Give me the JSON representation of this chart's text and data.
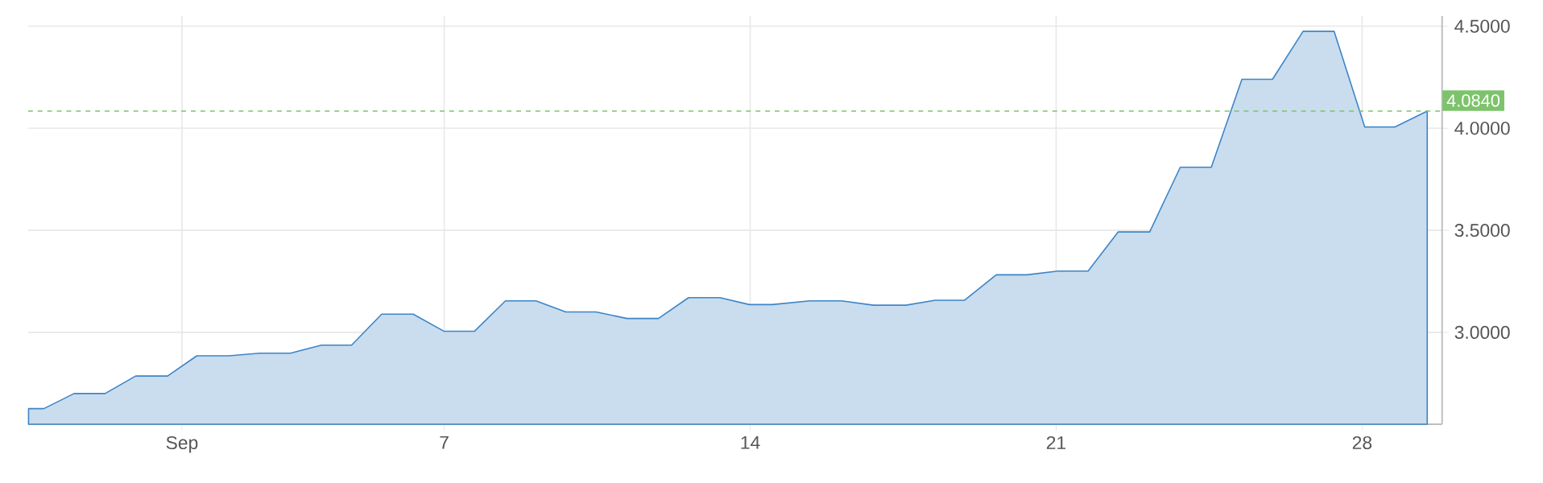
{
  "chart_data": {
    "type": "area",
    "color": "#3d85c6",
    "x": [
      -2.51,
      -2.16,
      -1.47,
      -0.76,
      -0.06,
      0.67,
      1.34,
      2.07,
      2.78,
      3.48,
      4.19,
      4.88,
      5.57,
      6.29,
      7.0,
      7.69,
      8.4,
      9.1,
      9.78,
      10.47,
      11.18,
      11.9,
      12.59,
      13.31,
      13.98,
      14.5,
      15.36,
      16.09,
      16.82,
      17.56,
      18.23,
      18.9,
      19.63,
      20.33,
      21.04,
      21.73,
      22.42,
      23.14,
      23.84,
      24.55,
      25.25,
      25.95,
      26.65,
      27.36,
      28.06,
      28.75,
      29.49
    ],
    "values": [
      2.626,
      2.626,
      2.7,
      2.7,
      2.786,
      2.786,
      2.885,
      2.885,
      2.898,
      2.898,
      2.937,
      2.937,
      3.089,
      3.089,
      3.005,
      3.005,
      3.154,
      3.154,
      3.1,
      3.1,
      3.068,
      3.068,
      3.17,
      3.17,
      3.136,
      3.136,
      3.154,
      3.154,
      3.133,
      3.133,
      3.157,
      3.157,
      3.282,
      3.282,
      3.3,
      3.3,
      3.492,
      3.492,
      3.809,
      3.809,
      4.24,
      4.24,
      4.475,
      4.475,
      4.006,
      4.006,
      4.084
    ],
    "xlim": [
      -2.52,
      29.83
    ],
    "xticks": [
      {
        "value": 1,
        "label": "Sep"
      },
      7,
      14,
      21,
      28
    ],
    "ylim": [
      2.55,
      4.55
    ],
    "yticks": [
      {
        "value": 3,
        "label": "3.0000"
      },
      {
        "value": 3.5,
        "label": "3.5000"
      },
      {
        "value": 4,
        "label": "4.0000"
      },
      {
        "value": 4.5,
        "label": "4.5000"
      }
    ],
    "grid": true,
    "ref_lines": [
      {
        "axis": "y",
        "value": 4.084,
        "label": "4.0840",
        "color": "#7dc36b",
        "line_style": "dashed"
      }
    ]
  }
}
